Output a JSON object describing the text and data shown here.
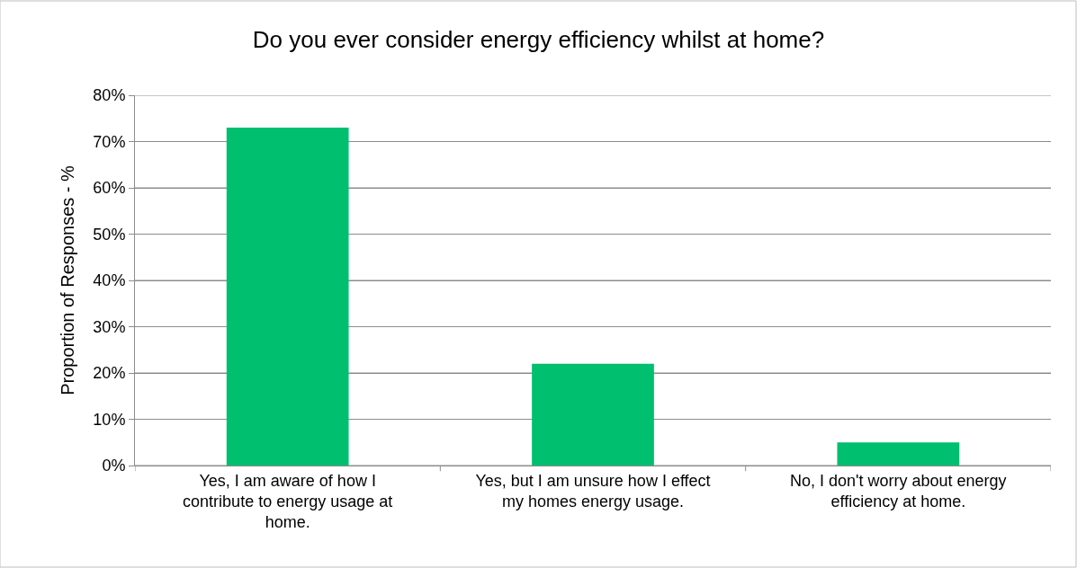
{
  "chart_data": {
    "type": "bar",
    "title": "Do you ever consider energy efficiency whilst at home?",
    "ylabel": "Proportion of Responses - %",
    "categories": [
      "Yes, I am aware of how I contribute to energy usage at home.",
      "Yes, but I am unsure how I effect my homes energy usage.",
      "No, I don't worry about energy efficiency at home."
    ],
    "values": [
      73,
      22,
      5
    ],
    "color": "#00bf6f",
    "ylim": [
      0,
      80
    ],
    "yticks": [
      {
        "value": 0,
        "label": "0%"
      },
      {
        "value": 10,
        "label": "10%"
      },
      {
        "value": 20,
        "label": "20%"
      },
      {
        "value": 30,
        "label": "30%"
      },
      {
        "value": 40,
        "label": "40%"
      },
      {
        "value": 50,
        "label": "50%"
      },
      {
        "value": 60,
        "label": "60%"
      },
      {
        "value": 70,
        "label": "70%"
      },
      {
        "value": 80,
        "label": "80%"
      }
    ],
    "grid": "y"
  }
}
